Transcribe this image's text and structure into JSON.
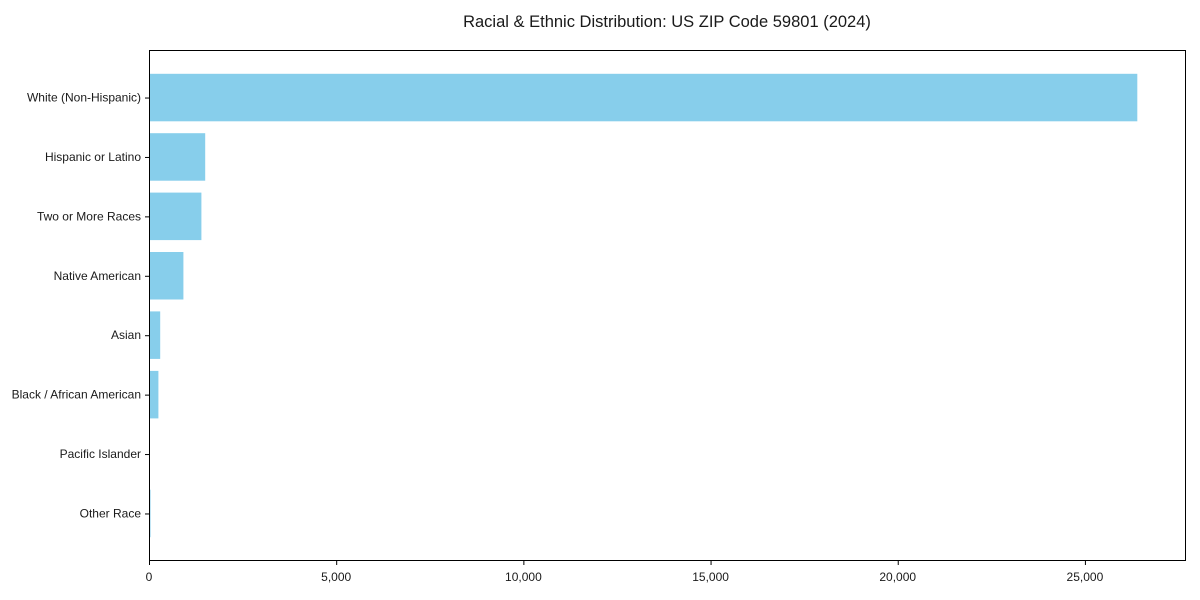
{
  "chart_data": {
    "type": "bar",
    "orientation": "horizontal",
    "title": "Racial & Ethnic Distribution: US ZIP Code 59801 (2024)",
    "categories": [
      "White (Non-Hispanic)",
      "Hispanic or Latino",
      "Two or More Races",
      "Native American",
      "Asian",
      "Black / African American",
      "Pacific Islander",
      "Other Race"
    ],
    "values": [
      26400,
      1500,
      1400,
      920,
      300,
      250,
      25,
      40
    ],
    "xlabel": "",
    "ylabel": "",
    "xlim": [
      0,
      27700
    ],
    "x_ticks": [
      0,
      5000,
      10000,
      15000,
      20000,
      25000
    ],
    "x_tick_labels": [
      "0",
      "5,000",
      "10,000",
      "15,000",
      "20,000",
      "25,000"
    ],
    "bar_color": "#87CEEB",
    "axis_color": "#000000",
    "text_color": "#1a1a1a",
    "background_color": "#ffffff",
    "grid": false,
    "legend": null,
    "frame": "full-box"
  }
}
